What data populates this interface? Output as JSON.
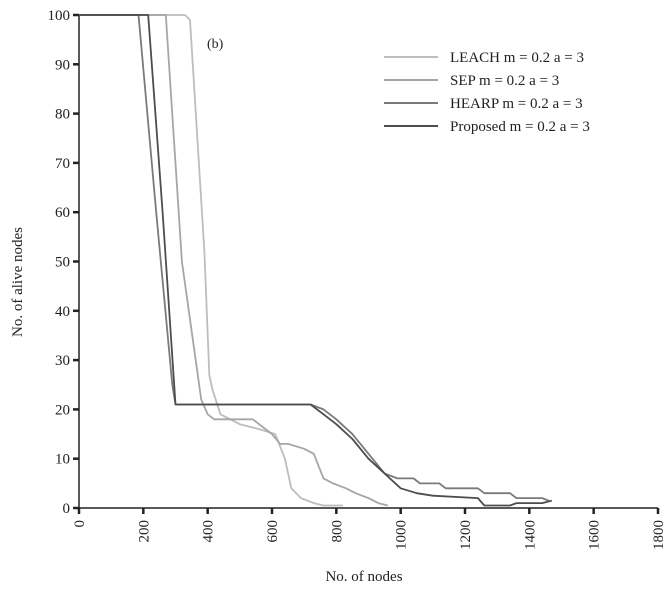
{
  "chart_data": {
    "type": "line",
    "title": "",
    "panel_label": "(b)",
    "xlabel": "No. of nodes",
    "ylabel": "No. of alive nodes",
    "xlim": [
      0,
      1800
    ],
    "ylim": [
      0,
      100
    ],
    "xticks": [
      0,
      200,
      400,
      600,
      800,
      1000,
      1200,
      1400,
      1600,
      1800
    ],
    "yticks": [
      0,
      10,
      20,
      30,
      40,
      50,
      60,
      70,
      80,
      90,
      100
    ],
    "grid": false,
    "legend_position": "top-right",
    "series": [
      {
        "name": "LEACH m = 0.2 a = 3",
        "color": "#bdbdbd",
        "points": [
          [
            0,
            100
          ],
          [
            330,
            100
          ],
          [
            345,
            99
          ],
          [
            390,
            52
          ],
          [
            405,
            27
          ],
          [
            415,
            24
          ],
          [
            440,
            19
          ],
          [
            500,
            17
          ],
          [
            560,
            16
          ],
          [
            610,
            15
          ],
          [
            640,
            10
          ],
          [
            660,
            4
          ],
          [
            690,
            2
          ],
          [
            730,
            1
          ],
          [
            760,
            0.5
          ],
          [
            820,
            0.5
          ]
        ]
      },
      {
        "name": "SEP m = 0.2 a = 3",
        "color": "#a6a6a6",
        "points": [
          [
            0,
            100
          ],
          [
            270,
            100
          ],
          [
            320,
            50
          ],
          [
            380,
            22
          ],
          [
            400,
            19
          ],
          [
            420,
            18
          ],
          [
            480,
            18
          ],
          [
            540,
            18
          ],
          [
            600,
            15
          ],
          [
            625,
            13
          ],
          [
            650,
            13
          ],
          [
            700,
            12
          ],
          [
            730,
            11
          ],
          [
            760,
            6
          ],
          [
            790,
            5
          ],
          [
            830,
            4
          ],
          [
            860,
            3
          ],
          [
            900,
            2
          ],
          [
            930,
            1
          ],
          [
            960,
            0.5
          ]
        ]
      },
      {
        "name": "HEARP m = 0.2 a = 3",
        "color": "#7a7a7a",
        "points": [
          [
            0,
            100
          ],
          [
            185,
            100
          ],
          [
            240,
            60
          ],
          [
            290,
            25
          ],
          [
            300,
            21
          ],
          [
            450,
            21
          ],
          [
            600,
            21
          ],
          [
            720,
            21
          ],
          [
            760,
            20
          ],
          [
            800,
            18
          ],
          [
            850,
            15
          ],
          [
            900,
            11
          ],
          [
            950,
            7
          ],
          [
            990,
            6
          ],
          [
            1040,
            6
          ],
          [
            1060,
            5
          ],
          [
            1120,
            5
          ],
          [
            1140,
            4
          ],
          [
            1240,
            4
          ],
          [
            1260,
            3
          ],
          [
            1340,
            3
          ],
          [
            1360,
            2
          ],
          [
            1440,
            2
          ],
          [
            1460,
            1.5
          ]
        ]
      },
      {
        "name": "Proposed m = 0.2 a = 3",
        "color": "#4d4d4d",
        "points": [
          [
            0,
            100
          ],
          [
            215,
            100
          ],
          [
            260,
            60
          ],
          [
            300,
            21
          ],
          [
            310,
            21
          ],
          [
            450,
            21
          ],
          [
            600,
            21
          ],
          [
            720,
            21
          ],
          [
            760,
            19
          ],
          [
            800,
            17
          ],
          [
            850,
            14
          ],
          [
            900,
            10
          ],
          [
            950,
            7
          ],
          [
            1000,
            4
          ],
          [
            1050,
            3
          ],
          [
            1100,
            2.5
          ],
          [
            1240,
            2
          ],
          [
            1260,
            0.5
          ],
          [
            1340,
            0.5
          ],
          [
            1360,
            1
          ],
          [
            1440,
            1
          ],
          [
            1470,
            1.5
          ]
        ]
      }
    ]
  }
}
